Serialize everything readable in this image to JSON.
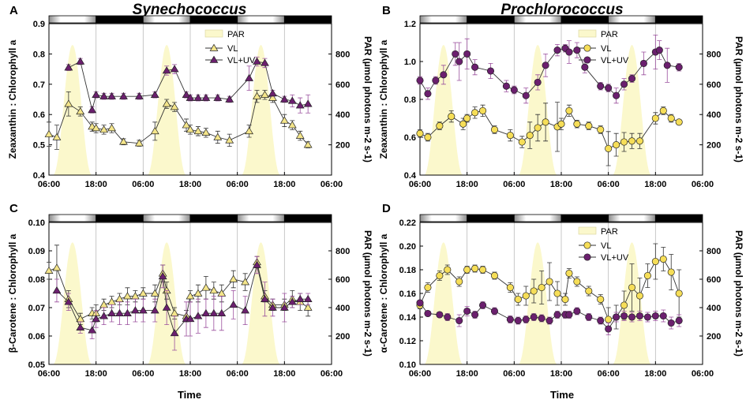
{
  "figure": {
    "organisms": [
      "Synechococcus",
      "Prochlorococcus"
    ],
    "x_axis_label": "Time",
    "legend": {
      "par": "PAR",
      "vl": "VL",
      "vluv": "VL+UV"
    }
  },
  "colors": {
    "par_fill": "#fbf8cc",
    "vl_syn": "#f4e58a",
    "vl_pro": "#f6de58",
    "vluv": "#6b1f6e",
    "vluv_err": "#9a4f9d",
    "light_bar": "#ffffff",
    "dark_bar": "#000000",
    "divider": "#bbbbbb"
  },
  "chart_data": [
    {
      "panel": "A",
      "type": "line",
      "title": "Synechococcus",
      "ylabel": "Zeaxanthin : Chlorophyll a",
      "y2label": "PAR (µmol photons m-2 s-1)",
      "xlabel": "",
      "marker": "triangle",
      "ylim": [
        0.4,
        0.9
      ],
      "yticks": [
        "0.4",
        "0.5",
        "0.6",
        "0.7",
        "0.8",
        "0.9"
      ],
      "xlim": [
        0,
        72
      ],
      "xticks": [
        "06:00",
        "18:00",
        "06:00",
        "18:00",
        "06:00",
        "18:00",
        "06:00"
      ],
      "y2lim": [
        0,
        1000
      ],
      "y2ticks": [
        "200",
        "400",
        "600",
        "800"
      ],
      "day_boundaries": [
        0,
        12,
        24,
        36,
        48,
        60,
        72
      ],
      "par_days": [
        {
          "start": 1,
          "peak": 6,
          "end": 11
        },
        {
          "start": 25,
          "peak": 30,
          "end": 35
        },
        {
          "start": 49,
          "peak": 54,
          "end": 59
        }
      ],
      "par_peak": 860,
      "legend_position": "top-center",
      "series": [
        {
          "name": "VL",
          "x": [
            0,
            2,
            5,
            8,
            11,
            12,
            14,
            16,
            19,
            23,
            27,
            30,
            32,
            35,
            36,
            38,
            40,
            43,
            46,
            51,
            53,
            55,
            57,
            60,
            62,
            64,
            66
          ],
          "y": [
            0.535,
            0.525,
            0.635,
            0.61,
            0.56,
            0.555,
            0.55,
            0.555,
            0.51,
            0.505,
            0.545,
            0.635,
            0.625,
            0.565,
            0.55,
            0.545,
            0.54,
            0.525,
            0.515,
            0.545,
            0.66,
            0.665,
            0.655,
            0.58,
            0.565,
            0.53,
            0.5
          ],
          "err": [
            0.04,
            0.04,
            0.04,
            0.015,
            0.015,
            0.015,
            0.015,
            0.015,
            0.01,
            0.01,
            0.03,
            0.015,
            0.015,
            0.02,
            0.015,
            0.015,
            0.015,
            0.02,
            0.02,
            0.02,
            0.02,
            0.015,
            0.015,
            0.02,
            0.015,
            0.015,
            0.01
          ]
        },
        {
          "name": "VL+UV",
          "x": [
            5,
            8,
            11,
            12,
            14,
            16,
            19,
            23,
            27,
            30,
            32,
            35,
            36,
            38,
            40,
            43,
            46,
            51,
            53,
            55,
            57,
            60,
            62,
            64,
            66
          ],
          "y": [
            0.755,
            0.775,
            0.615,
            0.665,
            0.66,
            0.66,
            0.66,
            0.66,
            0.665,
            0.745,
            0.75,
            0.665,
            0.655,
            0.655,
            0.655,
            0.655,
            0.65,
            0.72,
            0.775,
            0.77,
            0.67,
            0.65,
            0.645,
            0.63,
            0.635
          ],
          "err": [
            0.01,
            0.01,
            0.01,
            0.01,
            0.01,
            0.01,
            0.01,
            0.01,
            0.01,
            0.015,
            0.015,
            0.01,
            0.01,
            0.01,
            0.01,
            0.01,
            0.01,
            0.04,
            0.015,
            0.015,
            0.01,
            0.01,
            0.02,
            0.025,
            0.03
          ]
        }
      ]
    },
    {
      "panel": "B",
      "type": "line",
      "title": "Prochlorococcus",
      "ylabel": "Zeaxanthin : Chlorophyll a",
      "y2label": "PAR (µmol photons m-2 s-1)",
      "xlabel": "",
      "marker": "circle",
      "ylim": [
        0.4,
        1.2
      ],
      "yticks": [
        "0.4",
        "0.6",
        "0.8",
        "1.0",
        "1.2"
      ],
      "xlim": [
        0,
        72
      ],
      "xticks": [
        "06:00",
        "18:00",
        "06:00",
        "18:00",
        "06:00",
        "18:00",
        "06:00"
      ],
      "y2lim": [
        0,
        1000
      ],
      "y2ticks": [
        "200",
        "400",
        "600",
        "800"
      ],
      "day_boundaries": [
        0,
        12,
        24,
        36,
        48,
        60,
        72
      ],
      "par_days": [
        {
          "start": 1,
          "peak": 6,
          "end": 11
        },
        {
          "start": 25,
          "peak": 30,
          "end": 35
        },
        {
          "start": 49,
          "peak": 54,
          "end": 59
        }
      ],
      "par_peak": 860,
      "legend_position": "top-center",
      "series": [
        {
          "name": "VL",
          "x": [
            0,
            2,
            5,
            8,
            11,
            12,
            14,
            16,
            19,
            23,
            26,
            28,
            30,
            32,
            35,
            36,
            38,
            40,
            43,
            46,
            48,
            50,
            52,
            54,
            56,
            60,
            62,
            64,
            66
          ],
          "y": [
            0.62,
            0.6,
            0.66,
            0.71,
            0.67,
            0.7,
            0.73,
            0.74,
            0.64,
            0.61,
            0.575,
            0.61,
            0.65,
            0.68,
            0.655,
            0.67,
            0.74,
            0.67,
            0.66,
            0.64,
            0.54,
            0.56,
            0.575,
            0.58,
            0.58,
            0.7,
            0.74,
            0.7,
            0.68
          ],
          "err": [
            0.02,
            0.02,
            0.02,
            0.03,
            0.03,
            0.02,
            0.03,
            0.03,
            0.02,
            0.03,
            0.03,
            0.07,
            0.07,
            0.1,
            0.13,
            0.03,
            0.03,
            0.02,
            0.02,
            0.02,
            0.09,
            0.06,
            0.05,
            0.04,
            0.04,
            0.03,
            0.02,
            0.02,
            0.01
          ],
          "err_color": "#333333"
        },
        {
          "name": "VL+UV",
          "x": [
            0,
            2,
            4,
            6,
            9,
            10,
            12,
            14,
            18,
            22,
            24,
            27,
            30,
            32,
            35,
            37,
            38,
            40,
            42,
            46,
            48,
            50,
            52,
            54,
            57,
            60,
            61,
            63,
            66
          ],
          "y": [
            0.9,
            0.83,
            0.9,
            0.93,
            1.04,
            1.0,
            1.04,
            0.97,
            0.95,
            0.87,
            0.85,
            0.82,
            0.89,
            0.98,
            1.06,
            1.07,
            1.05,
            1.06,
            0.97,
            0.87,
            0.86,
            0.82,
            0.88,
            0.91,
            0.99,
            1.05,
            1.06,
            0.98,
            0.97
          ],
          "err": [
            0.02,
            0.03,
            0.02,
            0.05,
            0.06,
            0.1,
            0.08,
            0.04,
            0.04,
            0.03,
            0.02,
            0.04,
            0.04,
            0.06,
            0.03,
            0.02,
            0.06,
            0.04,
            0.03,
            0.02,
            0.02,
            0.04,
            0.03,
            0.02,
            0.06,
            0.09,
            0.05,
            0.09,
            0.02
          ]
        }
      ]
    },
    {
      "panel": "C",
      "type": "line",
      "title": "",
      "ylabel": "β-Carotene : Chlorophyll a",
      "y2label": "PAR (µmol photons m-2 s-1)",
      "xlabel": "Time",
      "marker": "triangle",
      "ylim": [
        0.05,
        0.1
      ],
      "yticks": [
        "0.05",
        "0.06",
        "0.07",
        "0.08",
        "0.09",
        "0.10"
      ],
      "xlim": [
        0,
        72
      ],
      "xticks": [
        "06:00",
        "18:00",
        "06:00",
        "18:00",
        "06:00",
        "18:00",
        "06:00"
      ],
      "y2lim": [
        0,
        1000
      ],
      "y2ticks": [
        "200",
        "400",
        "600",
        "800"
      ],
      "day_boundaries": [
        0,
        12,
        24,
        36,
        48,
        60,
        72
      ],
      "par_days": [
        {
          "start": 1,
          "peak": 6,
          "end": 11
        },
        {
          "start": 25,
          "peak": 30,
          "end": 35
        },
        {
          "start": 49,
          "peak": 54,
          "end": 59
        }
      ],
      "par_peak": 860,
      "legend_position": "none",
      "series": [
        {
          "name": "VL",
          "x": [
            0,
            2,
            5,
            8,
            11,
            12,
            14,
            16,
            18,
            20,
            22,
            24,
            27,
            29,
            30,
            32,
            35,
            36,
            38,
            40,
            42,
            44,
            47,
            50,
            53,
            55,
            57,
            60,
            62,
            64,
            66
          ],
          "y": [
            0.083,
            0.084,
            0.073,
            0.066,
            0.068,
            0.068,
            0.071,
            0.072,
            0.073,
            0.074,
            0.074,
            0.075,
            0.075,
            0.082,
            0.076,
            0.068,
            0.067,
            0.074,
            0.075,
            0.077,
            0.076,
            0.075,
            0.08,
            0.079,
            0.086,
            0.074,
            0.071,
            0.071,
            0.073,
            0.072,
            0.07
          ],
          "err": [
            0.003,
            0.008,
            0.003,
            0.002,
            0.002,
            0.003,
            0.002,
            0.002,
            0.002,
            0.003,
            0.002,
            0.002,
            0.003,
            0.003,
            0.003,
            0.002,
            0.002,
            0.002,
            0.003,
            0.004,
            0.003,
            0.003,
            0.003,
            0.003,
            0.002,
            0.002,
            0.002,
            0.002,
            0.003,
            0.003,
            0.003
          ]
        },
        {
          "name": "VL+UV",
          "x": [
            2,
            5,
            8,
            11,
            12,
            14,
            16,
            18,
            20,
            22,
            24,
            27,
            29,
            30,
            32,
            35,
            36,
            38,
            40,
            42,
            44,
            47,
            50,
            53,
            55,
            57,
            60,
            62,
            64,
            66
          ],
          "y": [
            0.076,
            0.072,
            0.063,
            0.062,
            0.066,
            0.067,
            0.068,
            0.068,
            0.068,
            0.069,
            0.069,
            0.069,
            0.081,
            0.07,
            0.061,
            0.066,
            0.066,
            0.067,
            0.068,
            0.068,
            0.068,
            0.071,
            0.069,
            0.085,
            0.073,
            0.07,
            0.07,
            0.072,
            0.073,
            0.073
          ],
          "err": [
            0.004,
            0.003,
            0.002,
            0.003,
            0.003,
            0.003,
            0.003,
            0.004,
            0.004,
            0.004,
            0.004,
            0.004,
            0.004,
            0.006,
            0.006,
            0.006,
            0.006,
            0.006,
            0.005,
            0.006,
            0.006,
            0.005,
            0.005,
            0.003,
            0.006,
            0.003,
            0.005,
            0.002,
            0.002,
            0.002
          ]
        }
      ]
    },
    {
      "panel": "D",
      "type": "line",
      "title": "",
      "ylabel": "α-Carotene : Chlorophyll a",
      "y2label": "PAR (µmol photons m-2 s-1)",
      "xlabel": "Time",
      "marker": "circle",
      "ylim": [
        0.1,
        0.22
      ],
      "yticks": [
        "0.10",
        "0.12",
        "0.14",
        "0.16",
        "0.18",
        "0.20",
        "0.22"
      ],
      "xlim": [
        0,
        72
      ],
      "xticks": [
        "06:00",
        "18:00",
        "06:00",
        "18:00",
        "06:00",
        "18:00",
        "06:00"
      ],
      "y2lim": [
        0,
        1000
      ],
      "y2ticks": [
        "200",
        "400",
        "600",
        "800"
      ],
      "day_boundaries": [
        0,
        12,
        24,
        36,
        48,
        60,
        72
      ],
      "par_days": [
        {
          "start": 1,
          "peak": 6,
          "end": 11
        },
        {
          "start": 25,
          "peak": 30,
          "end": 35
        },
        {
          "start": 49,
          "peak": 54,
          "end": 59
        }
      ],
      "par_peak": 860,
      "legend_position": "top-center",
      "series": [
        {
          "name": "VL",
          "x": [
            0,
            2,
            5,
            7,
            10,
            12,
            14,
            16,
            19,
            23,
            25,
            27,
            29,
            31,
            33,
            35,
            37,
            38,
            40,
            43,
            46,
            48,
            50,
            52,
            54,
            56,
            58,
            60,
            62,
            64,
            66
          ],
          "y": [
            0.15,
            0.165,
            0.175,
            0.18,
            0.17,
            0.18,
            0.181,
            0.18,
            0.175,
            0.165,
            0.155,
            0.158,
            0.162,
            0.165,
            0.17,
            0.16,
            0.155,
            0.177,
            0.17,
            0.162,
            0.155,
            0.138,
            0.14,
            0.15,
            0.165,
            0.158,
            0.175,
            0.187,
            0.189,
            0.178,
            0.16
          ],
          "err": [
            0.003,
            0.004,
            0.004,
            0.004,
            0.004,
            0.003,
            0.003,
            0.003,
            0.003,
            0.004,
            0.005,
            0.008,
            0.01,
            0.014,
            0.016,
            0.01,
            0.005,
            0.004,
            0.004,
            0.004,
            0.004,
            0.01,
            0.01,
            0.012,
            0.02,
            0.015,
            0.01,
            0.015,
            0.01,
            0.015,
            0.02
          ],
          "err_color": "#333333"
        },
        {
          "name": "VL+UV",
          "x": [
            0,
            2,
            5,
            7,
            10,
            12,
            14,
            16,
            19,
            23,
            25,
            27,
            29,
            31,
            33,
            35,
            37,
            38,
            40,
            43,
            46,
            48,
            50,
            52,
            54,
            56,
            58,
            60,
            62,
            64,
            66
          ],
          "y": [
            0.152,
            0.143,
            0.142,
            0.14,
            0.137,
            0.145,
            0.142,
            0.15,
            0.145,
            0.138,
            0.137,
            0.138,
            0.14,
            0.139,
            0.137,
            0.142,
            0.142,
            0.142,
            0.145,
            0.14,
            0.137,
            0.13,
            0.14,
            0.141,
            0.14,
            0.141,
            0.14,
            0.141,
            0.141,
            0.135,
            0.137
          ],
          "err": [
            0.002,
            0.002,
            0.002,
            0.003,
            0.005,
            0.004,
            0.003,
            0.003,
            0.003,
            0.003,
            0.003,
            0.003,
            0.003,
            0.003,
            0.003,
            0.003,
            0.003,
            0.003,
            0.003,
            0.003,
            0.003,
            0.005,
            0.004,
            0.004,
            0.004,
            0.004,
            0.004,
            0.004,
            0.005,
            0.005,
            0.005
          ]
        }
      ]
    }
  ]
}
